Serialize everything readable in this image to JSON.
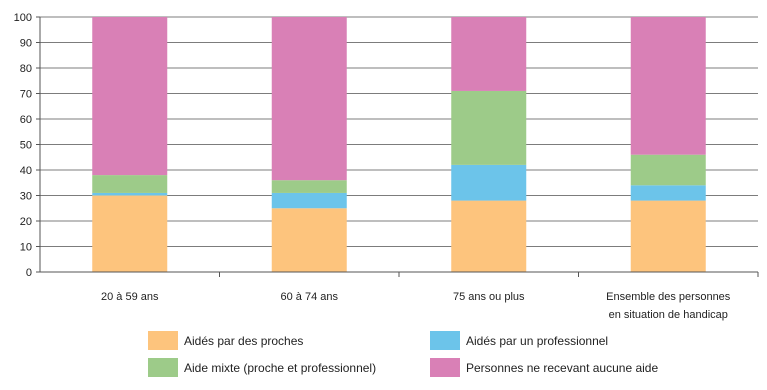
{
  "chart_data": {
    "type": "bar",
    "stacked": true,
    "categories": [
      [
        "20 à 59 ans"
      ],
      [
        "60 à 74 ans"
      ],
      [
        "75 ans ou plus"
      ],
      [
        "Ensemble des personnes",
        "en situation de handicap"
      ]
    ],
    "series": [
      {
        "name": "Aidés par des proches",
        "color": "#FDC47D",
        "values": [
          30,
          25,
          28,
          28
        ]
      },
      {
        "name": "Aidés par un professionnel",
        "color": "#6CC4EA",
        "values": [
          1,
          6,
          14,
          6
        ]
      },
      {
        "name": "Aide mixte (proche et professionnel)",
        "color": "#9DCB89",
        "values": [
          7,
          5,
          29,
          12
        ]
      },
      {
        "name": "Personnes ne recevant aucune aide",
        "color": "#D980B6",
        "values": [
          62,
          64,
          29,
          54
        ]
      }
    ],
    "ylim": [
      0,
      100
    ],
    "yticks": [
      0,
      10,
      20,
      30,
      40,
      50,
      60,
      70,
      80,
      90,
      100
    ],
    "grid": true,
    "legend": "bottom"
  }
}
